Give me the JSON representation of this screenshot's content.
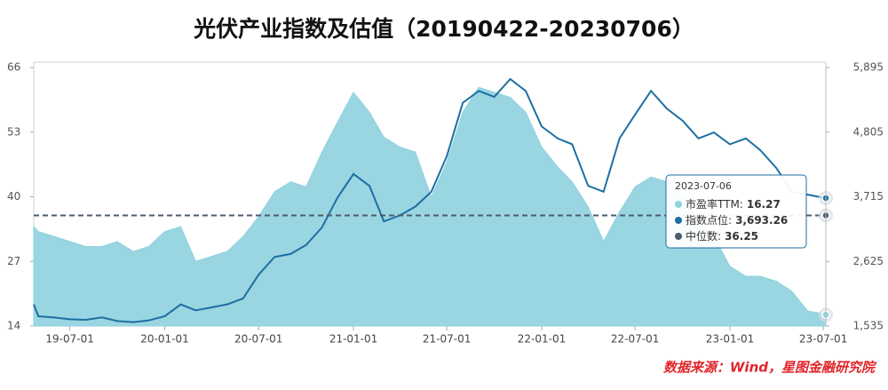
{
  "chart_data": {
    "type": "area-line",
    "title": "光伏产业指数及估值（20190422-20230706）",
    "source": "数据来源：Wind，星图金融研究院",
    "x": [
      "2019-04-22",
      "2019-05-01",
      "2019-06-01",
      "2019-07-01",
      "2019-08-01",
      "2019-09-01",
      "2019-10-01",
      "2019-11-01",
      "2019-12-01",
      "2020-01-01",
      "2020-02-01",
      "2020-03-01",
      "2020-04-01",
      "2020-05-01",
      "2020-06-01",
      "2020-07-01",
      "2020-08-01",
      "2020-09-01",
      "2020-10-01",
      "2020-11-01",
      "2020-12-01",
      "2021-01-01",
      "2021-02-01",
      "2021-03-01",
      "2021-04-01",
      "2021-05-01",
      "2021-06-01",
      "2021-07-01",
      "2021-08-01",
      "2021-09-01",
      "2021-10-01",
      "2021-11-01",
      "2021-12-01",
      "2022-01-01",
      "2022-02-01",
      "2022-03-01",
      "2022-04-01",
      "2022-05-01",
      "2022-06-01",
      "2022-07-01",
      "2022-08-01",
      "2022-09-01",
      "2022-10-01",
      "2022-11-01",
      "2022-12-01",
      "2023-01-01",
      "2023-02-01",
      "2023-03-01",
      "2023-04-01",
      "2023-05-01",
      "2023-06-01",
      "2023-07-01",
      "2023-07-06"
    ],
    "xlim": [
      "2019-04-22",
      "2023-07-06"
    ],
    "xticks": [
      {
        "value": "2019-07-01",
        "label": "19-07-01"
      },
      {
        "value": "2020-01-01",
        "label": "20-01-01"
      },
      {
        "value": "2020-07-01",
        "label": "20-07-01"
      },
      {
        "value": "2021-01-01",
        "label": "21-01-01"
      },
      {
        "value": "2021-07-01",
        "label": "21-07-01"
      },
      {
        "value": "2022-01-01",
        "label": "22-01-01"
      },
      {
        "value": "2022-07-01",
        "label": "22-07-01"
      },
      {
        "value": "2023-01-01",
        "label": "23-01-01"
      },
      {
        "value": "2023-07-01",
        "label": "23-07-01"
      }
    ],
    "ylim": [
      14,
      66
    ],
    "yticks": [
      14,
      27,
      40,
      53,
      66
    ],
    "y2lim": [
      1535,
      5895
    ],
    "y2ticks": [
      {
        "value": 1535,
        "label": "1,535"
      },
      {
        "value": 2625,
        "label": "2,625"
      },
      {
        "value": 3715,
        "label": "3,715"
      },
      {
        "value": 4805,
        "label": "4,805"
      },
      {
        "value": 5895,
        "label": "5,895"
      }
    ],
    "series": [
      {
        "name": "市盈率TTM",
        "kind": "area",
        "color": "#8fd2de",
        "values": [
          34,
          33,
          32,
          31,
          30,
          30,
          31,
          29,
          30,
          33,
          34,
          27,
          28,
          29,
          32,
          36,
          41,
          43,
          42,
          49,
          55,
          61,
          57,
          52,
          50,
          49,
          40,
          47,
          57,
          62,
          61,
          60,
          57,
          50,
          46,
          43,
          38,
          31,
          37,
          42,
          44,
          43,
          40,
          35,
          32,
          26,
          24,
          24,
          23,
          21,
          17,
          16.5,
          16.27
        ]
      },
      {
        "name": "指数点位",
        "kind": "line",
        "axis": "y2",
        "color": "#1d6ea3",
        "values": [
          1900,
          1700,
          1680,
          1650,
          1640,
          1680,
          1620,
          1600,
          1630,
          1700,
          1900,
          1800,
          1850,
          1900,
          2000,
          2400,
          2700,
          2750,
          2900,
          3200,
          3700,
          4100,
          3900,
          3300,
          3400,
          3550,
          3800,
          4400,
          5300,
          5500,
          5400,
          5700,
          5500,
          4900,
          4700,
          4600,
          3900,
          3800,
          4700,
          5100,
          5500,
          5200,
          5000,
          4700,
          4800,
          4600,
          4700,
          4500,
          4200,
          3800,
          3750,
          3700,
          3693.26
        ],
        "value_labels": [
          null,
          null,
          null,
          null,
          null,
          null,
          null,
          null,
          null,
          null,
          null,
          null,
          null,
          null,
          null,
          null,
          null,
          null,
          null,
          null,
          null,
          null,
          null,
          null,
          null,
          null,
          null,
          null,
          null,
          null,
          null,
          null,
          null,
          null,
          null,
          null,
          null,
          null,
          null,
          null,
          null,
          null,
          null,
          null,
          null,
          null,
          null,
          null,
          null,
          null,
          null,
          null,
          "3,693.26"
        ]
      }
    ],
    "reference_lines": [
      {
        "name": "中位数",
        "value": 36.25,
        "color": "#4d5b6b"
      }
    ],
    "tooltip": {
      "separator": ":"
    }
  }
}
